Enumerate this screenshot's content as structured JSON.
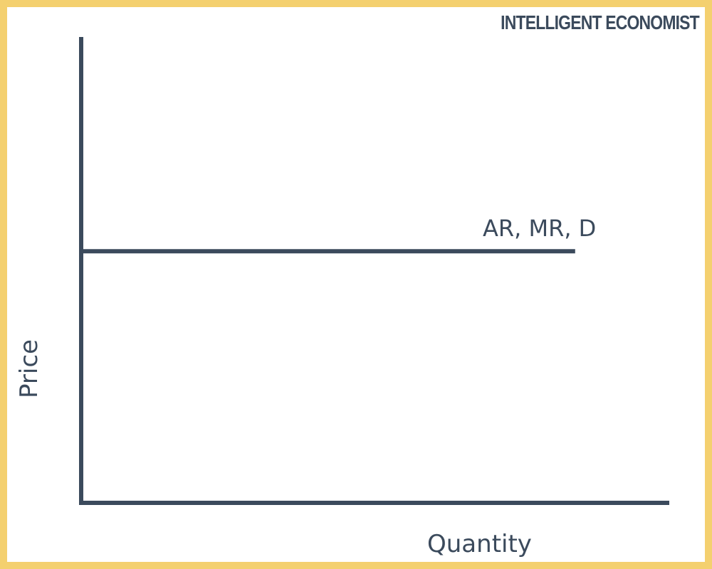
{
  "brand": {
    "text": "INTELLIGENT ECONOMIST"
  },
  "colors": {
    "frame": "#f4d06f",
    "ink": "#3b4a5c",
    "background": "#ffffff"
  },
  "chart_data": {
    "type": "line",
    "title": "",
    "xlabel": "Quantity",
    "ylabel": "Price",
    "xlim": [
      0,
      1
    ],
    "ylim": [
      0,
      1
    ],
    "grid": false,
    "ticks": false,
    "series": [
      {
        "name": "AR, MR, D",
        "x": [
          0,
          0.84
        ],
        "y": [
          0.54,
          0.54
        ]
      }
    ]
  }
}
